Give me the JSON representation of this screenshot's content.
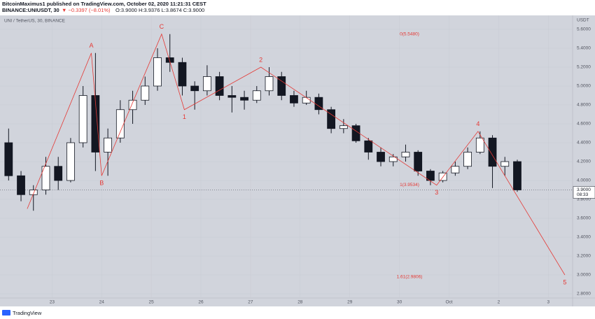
{
  "header": {
    "author_line": "BitcoinMaximus1 published on TradingView.com, October 02, 2020 11:21:31 CEST",
    "symbol": "BINANCE:UNIUSDT, 30",
    "change": "▼ −0.3397 (−8.01%)",
    "ohlc": "O:3.9000 H:3.9376 L:3.8674 C:3.9000"
  },
  "footer": {
    "brand": "TradingView"
  },
  "chart_data": {
    "type": "candlestick",
    "title": "UNI / TetherUS, 30, BINANCE",
    "y_axis_label": "USDT",
    "up_color": "#ffffff",
    "down_color": "#131722",
    "edge_color": "#131722",
    "wave_color": "#e53935",
    "x": [
      "2020-09-22T00:00",
      "2020-09-22T06:00",
      "2020-09-22T12:00",
      "2020-09-22T18:00",
      "2020-09-23T00:00",
      "2020-09-23T06:00",
      "2020-09-23T12:00",
      "2020-09-23T18:00",
      "2020-09-24T00:00",
      "2020-09-24T06:00",
      "2020-09-24T12:00",
      "2020-09-24T18:00",
      "2020-09-25T00:00",
      "2020-09-25T06:00",
      "2020-09-25T12:00",
      "2020-09-25T18:00",
      "2020-09-26T00:00",
      "2020-09-26T06:00",
      "2020-09-26T12:00",
      "2020-09-26T18:00",
      "2020-09-27T00:00",
      "2020-09-27T06:00",
      "2020-09-27T12:00",
      "2020-09-27T18:00",
      "2020-09-28T00:00",
      "2020-09-28T06:00",
      "2020-09-28T12:00",
      "2020-09-28T18:00",
      "2020-09-29T00:00",
      "2020-09-29T06:00",
      "2020-09-29T12:00",
      "2020-09-29T18:00",
      "2020-09-30T00:00",
      "2020-09-30T06:00",
      "2020-09-30T12:00",
      "2020-09-30T18:00",
      "2020-10-01T00:00",
      "2020-10-01T06:00",
      "2020-10-01T12:00",
      "2020-10-01T18:00",
      "2020-10-02T00:00",
      "2020-10-02T06:00"
    ],
    "open": [
      4.4,
      4.05,
      3.85,
      3.9,
      4.15,
      4.0,
      4.4,
      4.9,
      4.3,
      4.45,
      4.75,
      4.85,
      5.0,
      5.3,
      5.25,
      5.0,
      4.95,
      5.1,
      4.9,
      4.88,
      4.85,
      4.95,
      5.1,
      4.9,
      4.82,
      4.88,
      4.75,
      4.55,
      4.58,
      4.42,
      4.3,
      4.2,
      4.25,
      4.3,
      4.1,
      4.0,
      4.08,
      4.15,
      4.3,
      4.45,
      4.15,
      4.2
    ],
    "high": [
      4.55,
      4.1,
      3.95,
      4.25,
      4.25,
      4.45,
      5.0,
      5.35,
      4.55,
      4.85,
      4.95,
      5.1,
      5.4,
      5.55,
      5.3,
      5.05,
      5.22,
      5.15,
      5.0,
      4.95,
      5.0,
      5.2,
      5.15,
      4.95,
      4.95,
      4.92,
      4.78,
      4.65,
      4.6,
      4.45,
      4.35,
      4.28,
      4.38,
      4.32,
      4.12,
      4.1,
      4.2,
      4.35,
      4.52,
      4.48,
      4.25,
      4.22
    ],
    "low": [
      4.0,
      3.78,
      3.68,
      3.85,
      3.9,
      3.98,
      4.35,
      4.1,
      4.05,
      4.4,
      4.6,
      4.8,
      4.95,
      5.15,
      4.9,
      4.75,
      4.9,
      4.85,
      4.72,
      4.75,
      4.82,
      4.9,
      4.85,
      4.78,
      4.8,
      4.7,
      4.5,
      4.5,
      4.4,
      4.22,
      4.15,
      4.15,
      4.2,
      4.05,
      3.95,
      3.98,
      4.05,
      4.12,
      4.28,
      3.92,
      4.05,
      3.88
    ],
    "close": [
      4.05,
      3.85,
      3.9,
      4.15,
      4.0,
      4.4,
      4.9,
      4.3,
      4.45,
      4.75,
      4.85,
      5.0,
      5.3,
      5.25,
      5.0,
      4.95,
      5.1,
      4.9,
      4.88,
      4.85,
      4.95,
      5.1,
      4.9,
      4.82,
      4.88,
      4.75,
      4.55,
      4.58,
      4.42,
      4.3,
      4.2,
      4.25,
      4.3,
      4.1,
      4.0,
      4.08,
      4.15,
      4.3,
      4.45,
      4.15,
      4.2,
      3.9
    ],
    "waves": {
      "x": [
        "2020-09-22T12:00",
        "2020-09-23T19:00",
        "2020-09-24T00:00",
        "2020-09-25T05:00",
        "2020-09-25T16:00",
        "2020-09-27T05:00",
        "2020-09-30T18:00",
        "2020-10-01T14:00",
        "2020-10-03T08:00"
      ],
      "y": [
        3.7,
        5.35,
        4.05,
        5.55,
        4.75,
        5.2,
        3.95,
        4.52,
        3.0
      ],
      "labels": [
        null,
        "A",
        "B",
        "C",
        "1",
        "2",
        "3",
        "4",
        "5"
      ]
    },
    "fib_levels": [
      {
        "value": 5.548,
        "label": "0(5.5480)"
      },
      {
        "value": 3.9534,
        "label": "1(3.9534)"
      },
      {
        "value": 2.9806,
        "label": "1.61(2.9806)"
      }
    ],
    "last_price": {
      "value": 3.9,
      "label": "3.9000"
    },
    "countdown": "08:33",
    "xlim": [
      "2020-09-21T22:50",
      "2020-10-03T11:45"
    ],
    "xticks": [
      {
        "value": "2020-09-23T00:00",
        "label": "23"
      },
      {
        "value": "2020-09-24T00:00",
        "label": "24"
      },
      {
        "value": "2020-09-25T00:00",
        "label": "25"
      },
      {
        "value": "2020-09-26T00:00",
        "label": "26"
      },
      {
        "value": "2020-09-27T00:00",
        "label": "27"
      },
      {
        "value": "2020-09-28T00:00",
        "label": "28"
      },
      {
        "value": "2020-09-29T00:00",
        "label": "29"
      },
      {
        "value": "2020-09-30T00:00",
        "label": "30"
      },
      {
        "value": "2020-10-01T00:00",
        "label": "Oct"
      },
      {
        "value": "2020-10-02T00:00",
        "label": "2"
      },
      {
        "value": "2020-10-03T00:00",
        "label": "3"
      }
    ],
    "ylim": [
      2.689,
      5.748
    ],
    "yticks": [
      {
        "value": 2.8,
        "label": "2.8000"
      },
      {
        "value": 3.0,
        "label": "3.0000"
      },
      {
        "value": 3.2,
        "label": "3.2000"
      },
      {
        "value": 3.4,
        "label": "3.4000"
      },
      {
        "value": 3.6,
        "label": "3.6000"
      },
      {
        "value": 3.8,
        "label": "3.8000"
      },
      {
        "value": 4.0,
        "label": "4.0000"
      },
      {
        "value": 4.2,
        "label": "4.2000"
      },
      {
        "value": 4.4,
        "label": "4.4000"
      },
      {
        "value": 4.6,
        "label": "4.6000"
      },
      {
        "value": 4.8,
        "label": "4.8000"
      },
      {
        "value": 5.0,
        "label": "5.0000"
      },
      {
        "value": 5.2,
        "label": "5.2000"
      },
      {
        "value": 5.4,
        "label": "5.4000"
      },
      {
        "value": 5.6,
        "label": "5.6000"
      }
    ]
  }
}
